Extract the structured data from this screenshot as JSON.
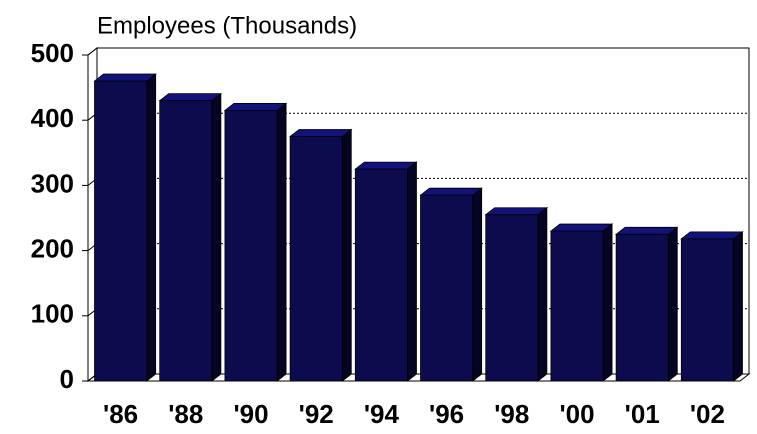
{
  "chart_data": {
    "type": "bar",
    "title": "Employees (Thousands)",
    "categories": [
      "'86",
      "'88",
      "'90",
      "'92",
      "'94",
      "'96",
      "'98",
      "'00",
      "'01",
      "'02"
    ],
    "values": [
      460,
      430,
      415,
      375,
      325,
      285,
      255,
      230,
      225,
      218
    ],
    "color": "#0b0b4d",
    "ylim": [
      0,
      500
    ],
    "yticks": [
      0,
      100,
      200,
      300,
      400,
      500
    ],
    "grid": true
  }
}
